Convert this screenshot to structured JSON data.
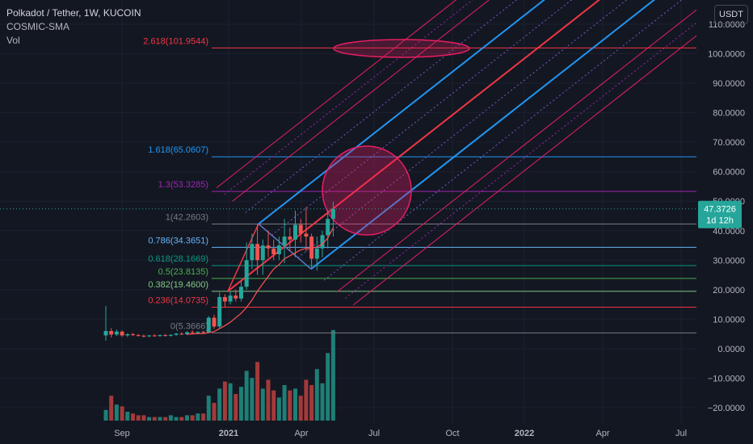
{
  "header": {
    "symbol_line": "Polkadot / Tether, 1W, KUCOIN",
    "indicator_1": "COSMIC-SMA",
    "indicator_2": "Vol",
    "currency": "USDT"
  },
  "price_badge": {
    "value": "47.3726",
    "countdown": "1d 12h",
    "color": "#26a69a"
  },
  "colors": {
    "background": "#131722",
    "up": "#26a69a",
    "down": "#ef5350",
    "vol_up": "#1e7f76",
    "vol_down": "#a33a3a",
    "pitchfork_median": "#f23645",
    "pitchfork_blue": "#2196f3",
    "pitchfork_outer": "#e91e63",
    "circle": "#e91e63"
  },
  "chart_data": {
    "type": "candlestick",
    "title": "Polkadot / Tether, 1W, KUCOIN",
    "x_tick_labels": [
      "Sep",
      "2021",
      "Apr",
      "Jul",
      "Oct",
      "2022",
      "Apr",
      "Jul"
    ],
    "y_tick_labels": [
      "110.0000",
      "100.0000",
      "90.0000",
      "80.0000",
      "70.0000",
      "60.0000",
      "50.0000",
      "40.0000",
      "30.0000",
      "20.0000",
      "10.0000",
      "0.0000",
      "−10.0000",
      "−20.0000"
    ],
    "ylim": [
      -22,
      116
    ],
    "candles": [
      {
        "o": 4.5,
        "h": 14.5,
        "l": 2.7,
        "c": 6.0
      },
      {
        "o": 6.0,
        "h": 7.0,
        "l": 3.8,
        "c": 4.8
      },
      {
        "o": 4.8,
        "h": 6.5,
        "l": 4.3,
        "c": 5.8
      },
      {
        "o": 5.8,
        "h": 6.2,
        "l": 4.0,
        "c": 4.5
      },
      {
        "o": 4.5,
        "h": 5.2,
        "l": 4.0,
        "c": 4.9
      },
      {
        "o": 4.9,
        "h": 5.4,
        "l": 4.3,
        "c": 4.6
      },
      {
        "o": 4.6,
        "h": 5.0,
        "l": 4.1,
        "c": 4.4
      },
      {
        "o": 4.4,
        "h": 4.8,
        "l": 3.8,
        "c": 4.2
      },
      {
        "o": 4.2,
        "h": 4.6,
        "l": 3.9,
        "c": 4.5
      },
      {
        "o": 4.5,
        "h": 4.9,
        "l": 4.0,
        "c": 4.3
      },
      {
        "o": 4.3,
        "h": 4.8,
        "l": 4.0,
        "c": 4.6
      },
      {
        "o": 4.6,
        "h": 5.0,
        "l": 4.1,
        "c": 4.4
      },
      {
        "o": 4.4,
        "h": 4.9,
        "l": 4.1,
        "c": 4.7
      },
      {
        "o": 4.7,
        "h": 5.4,
        "l": 4.4,
        "c": 5.1
      },
      {
        "o": 5.1,
        "h": 5.6,
        "l": 4.6,
        "c": 4.9
      },
      {
        "o": 4.9,
        "h": 5.9,
        "l": 4.6,
        "c": 5.6
      },
      {
        "o": 5.6,
        "h": 6.2,
        "l": 5.0,
        "c": 5.3
      },
      {
        "o": 5.3,
        "h": 5.9,
        "l": 4.9,
        "c": 5.7
      },
      {
        "o": 5.7,
        "h": 6.1,
        "l": 5.0,
        "c": 5.4
      },
      {
        "o": 5.4,
        "h": 11.0,
        "l": 5.2,
        "c": 10.5
      },
      {
        "o": 10.5,
        "h": 11.5,
        "l": 6.8,
        "c": 7.5
      },
      {
        "o": 7.5,
        "h": 19.0,
        "l": 7.0,
        "c": 17.5
      },
      {
        "o": 17.5,
        "h": 18.5,
        "l": 14.0,
        "c": 16.0
      },
      {
        "o": 16.0,
        "h": 19.5,
        "l": 15.0,
        "c": 18.0
      },
      {
        "o": 18.0,
        "h": 20.0,
        "l": 16.0,
        "c": 17.0
      },
      {
        "o": 17.0,
        "h": 23.0,
        "l": 16.0,
        "c": 21.0
      },
      {
        "o": 21.0,
        "h": 36.0,
        "l": 20.0,
        "c": 30.0
      },
      {
        "o": 30.0,
        "h": 39.0,
        "l": 27.0,
        "c": 35.5
      },
      {
        "o": 35.5,
        "h": 42.3,
        "l": 25.0,
        "c": 30.0
      },
      {
        "o": 30.0,
        "h": 37.0,
        "l": 25.0,
        "c": 35.0
      },
      {
        "o": 35.0,
        "h": 40.0,
        "l": 31.0,
        "c": 34.0
      },
      {
        "o": 34.0,
        "h": 37.0,
        "l": 30.0,
        "c": 32.0
      },
      {
        "o": 32.0,
        "h": 38.0,
        "l": 30.0,
        "c": 35.0
      },
      {
        "o": 35.0,
        "h": 44.0,
        "l": 29.0,
        "c": 38.0
      },
      {
        "o": 38.0,
        "h": 41.0,
        "l": 33.0,
        "c": 37.0
      },
      {
        "o": 37.0,
        "h": 46.8,
        "l": 31.0,
        "c": 42.0
      },
      {
        "o": 42.0,
        "h": 44.0,
        "l": 36.0,
        "c": 39.0
      },
      {
        "o": 39.0,
        "h": 48.0,
        "l": 33.0,
        "c": 38.0
      },
      {
        "o": 38.0,
        "h": 39.0,
        "l": 27.0,
        "c": 30.5
      },
      {
        "o": 30.5,
        "h": 38.0,
        "l": 26.5,
        "c": 34.0
      },
      {
        "o": 34.0,
        "h": 40.0,
        "l": 31.0,
        "c": 38.5
      },
      {
        "o": 38.5,
        "h": 47.0,
        "l": 34.0,
        "c": 44.0
      },
      {
        "o": 44.0,
        "h": 49.8,
        "l": 38.0,
        "c": 47.4
      }
    ],
    "volume": [
      6,
      14,
      9,
      8,
      5,
      4,
      3,
      3,
      2,
      2,
      2,
      2,
      3,
      2,
      2,
      3,
      3,
      4,
      4,
      14,
      10,
      18,
      22,
      21,
      15,
      19,
      28,
      24,
      33,
      18,
      23,
      17,
      13,
      20,
      17,
      18,
      14,
      23,
      20,
      29,
      21,
      38,
      51
    ],
    "sma": [
      null,
      null,
      null,
      null,
      null,
      null,
      null,
      null,
      null,
      null,
      null,
      null,
      null,
      null,
      null,
      4.9,
      5.0,
      5.1,
      5.1,
      5.4,
      5.8,
      6.8,
      7.8,
      9.0,
      10.5,
      12.0,
      14.0,
      16.5,
      19.5,
      22.0,
      24.5,
      27.0,
      28.5,
      30.5,
      31.5,
      32.5,
      33.5,
      34.0,
      34.0,
      34.5,
      35.5,
      37.5,
      41.0
    ],
    "fib_levels": [
      {
        "label": "0(5.3666)",
        "value": 5.3666,
        "color": "#787b86"
      },
      {
        "label": "0.236(14.0735)",
        "value": 14.0735,
        "color": "#f23645"
      },
      {
        "label": "0.382(19.4600)",
        "value": 19.46,
        "color": "#81c784"
      },
      {
        "label": "0.5(23.8135)",
        "value": 23.8135,
        "color": "#4caf50"
      },
      {
        "label": "0.618(28.1669)",
        "value": 28.1669,
        "color": "#089981"
      },
      {
        "label": "0.786(34.3651)",
        "value": 34.3651,
        "color": "#64b5f6"
      },
      {
        "label": "1(42.2603)",
        "value": 42.2603,
        "color": "#787b86"
      },
      {
        "label": "1.3(53.3285)",
        "value": 53.3285,
        "color": "#9c27b0"
      },
      {
        "label": "1.618(65.0607)",
        "value": 65.0607,
        "color": "#2196f3"
      },
      {
        "label": "2.618(101.9544)",
        "value": 101.9544,
        "color": "#f23645"
      }
    ]
  }
}
